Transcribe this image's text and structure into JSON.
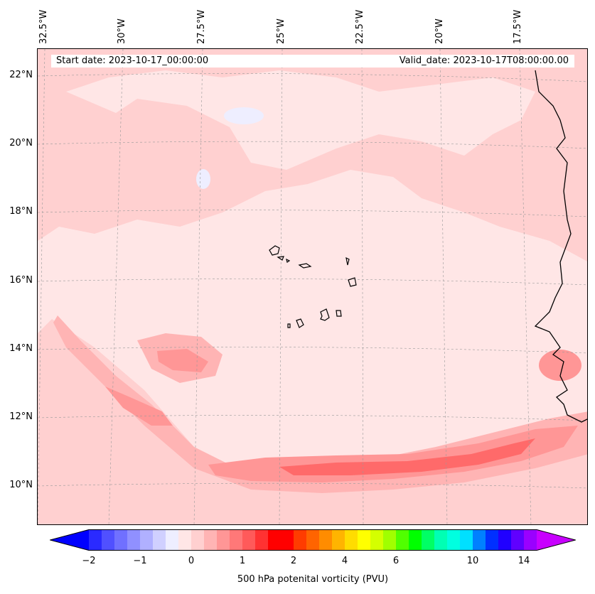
{
  "header": {
    "start_date": "Start date: 2023-10-17_00:00:00",
    "valid_date": "Valid_date: 2023-10-17T08:00:00.00"
  },
  "longitude_labels": [
    "32.5°W",
    "30°W",
    "27.5°W",
    "25°W",
    "22.5°W",
    "20°W",
    "17.5°W"
  ],
  "latitude_labels": [
    "22°N",
    "20°N",
    "18°N",
    "16°N",
    "14°N",
    "12°N",
    "10°N"
  ],
  "colorbar": {
    "label": "500 hPa potenital vorticity (PVU)",
    "ticks": [
      "−2",
      "−1",
      "0",
      "1",
      "2",
      "4",
      "6",
      "10",
      "14"
    ],
    "colors": [
      "#0000ff",
      "#2a2aff",
      "#5050ff",
      "#7070ff",
      "#9090ff",
      "#b0b0ff",
      "#d0d0ff",
      "#eeeeff",
      "#ffe6e6",
      "#ffd0d0",
      "#ffb4b4",
      "#ff9696",
      "#ff7878",
      "#ff5a5a",
      "#ff3232",
      "#ff0000",
      "#ff0000",
      "#ff3c00",
      "#ff6400",
      "#ff8c00",
      "#ffb400",
      "#ffdc00",
      "#ffff00",
      "#d4ff00",
      "#a0ff00",
      "#50ff00",
      "#00ff00",
      "#00ff64",
      "#00ffb4",
      "#00ffe0",
      "#00e0ff",
      "#0080ff",
      "#0030ff",
      "#2000ff",
      "#6000ff",
      "#9a00ff",
      "#c800ff"
    ]
  },
  "colors": {
    "background_fill": "#ffe6e6",
    "light_band": "#ffd0d0",
    "medium_band": "#ffb4b4",
    "strong_band": "#ff9090",
    "core_band": "#ff6060",
    "coastline": "#000000"
  }
}
